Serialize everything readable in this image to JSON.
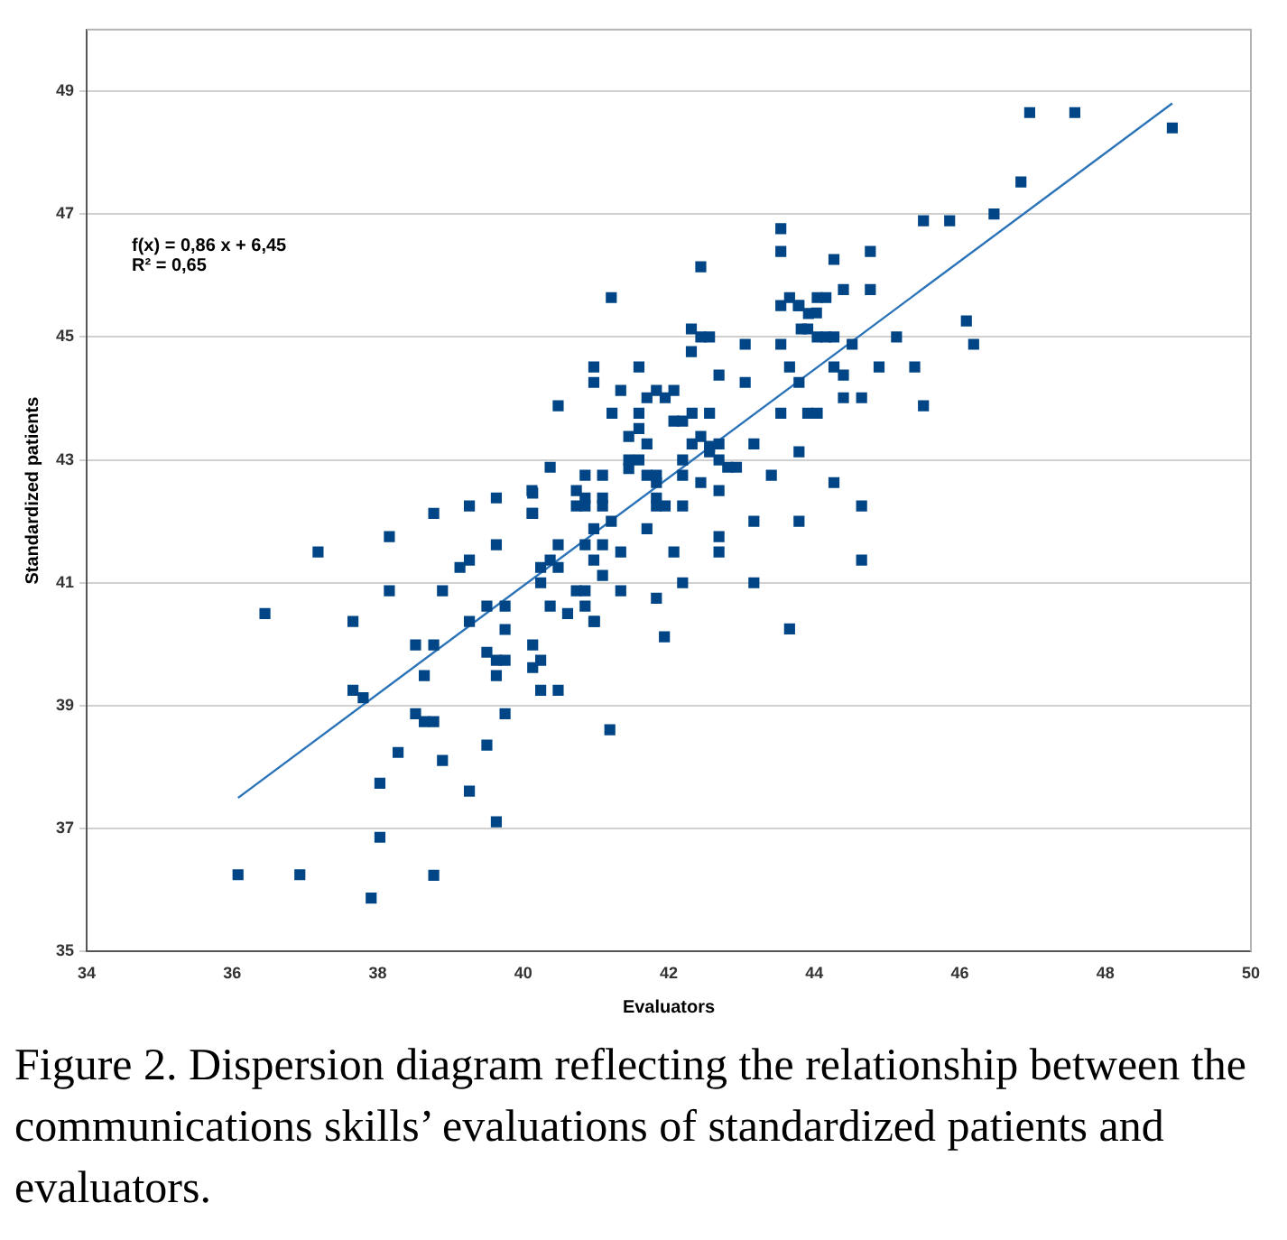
{
  "chart_data": {
    "type": "scatter",
    "xlabel": "Evaluators",
    "ylabel": "Standardized patients",
    "annotations": [
      "f(x) = 0,86 x + 6,45",
      "R² = 0,65",
      "Figure 2. Dispersion diagram reflecting the relationship between the communications skills’ evaluations of standardized patients and evaluators."
    ],
    "xlim": [
      34,
      50
    ],
    "xticks": [
      34,
      36,
      38,
      40,
      42,
      44,
      46,
      48,
      50
    ],
    "ylim": [
      35,
      50
    ],
    "yticks": [
      35,
      37,
      39,
      41,
      43,
      45,
      47,
      49
    ],
    "grid": "y",
    "legend": false,
    "series": [
      {
        "color": "#004586",
        "marker": "square",
        "x": [
          36.08,
          36.93,
          36.45,
          37.18,
          37.91,
          38.03,
          38.03,
          37.66,
          37.66,
          37.8,
          38.16,
          38.16,
          38.28,
          38.77,
          38.89,
          38.77,
          38.52,
          38.64,
          38.52,
          38.64,
          38.77,
          38.89,
          38.77,
          39.26,
          39.13,
          39.26,
          39.63,
          39.63,
          40.13,
          40.13,
          39.5,
          39.75,
          39.26,
          39.75,
          39.5,
          39.63,
          39.75,
          39.63,
          40.13,
          40.24,
          40.13,
          40.24,
          40.48,
          39.75,
          39.5,
          39.26,
          39.63,
          41.19,
          40.24,
          40.37,
          40.61,
          40.98,
          40.73,
          40.85,
          40.85,
          40.24,
          40.48,
          40.37,
          40.48,
          42.44,
          41.21,
          42.31,
          42.44,
          42.56,
          42.31,
          43.05,
          43.54,
          43.66,
          43.79,
          43.54,
          43.92,
          44.04,
          43.82,
          44.04,
          40.97,
          40.97,
          41.59,
          40.48,
          41.34,
          41.7,
          41.83,
          41.95,
          42.07,
          41.22,
          41.59,
          42.07,
          42.19,
          42.32,
          42.56,
          42.69,
          43.05,
          43.54,
          43.91,
          44.04,
          43.79,
          41.45,
          41.59,
          41.7,
          42.32,
          42.44,
          42.56,
          42.69,
          43.17,
          41.45,
          41.59,
          41.45,
          42.19,
          42.56,
          42.69,
          42.81,
          42.93,
          43.41,
          43.79,
          40.37,
          40.85,
          41.09,
          41.7,
          41.83,
          41.83,
          42.19,
          42.44,
          42.69,
          40.12,
          40.12,
          40.73,
          40.85,
          40.73,
          40.85,
          41.09,
          41.09,
          41.83,
          41.83,
          41.95,
          42.19,
          41.21,
          40.97,
          41.7,
          43.17,
          43.79,
          42.69,
          42.69,
          40.85,
          41.09,
          40.97,
          41.09,
          41.34,
          42.07,
          41.34,
          41.83,
          42.19,
          43.17,
          40.97,
          41.94,
          43.66,
          45.5,
          45.86,
          43.54,
          43.54,
          44.27,
          44.77,
          43.78,
          44.03,
          44.16,
          44.4,
          44.77,
          43.91,
          44.16,
          44.27,
          44.52,
          45.13,
          46.09,
          46.19,
          43.66,
          44.27,
          44.4,
          44.89,
          45.38,
          44.4,
          44.65,
          45.5,
          44.27,
          44.65,
          44.65,
          46.96,
          47.58,
          48.92,
          46.84,
          46.47
        ],
        "values": [
          36.25,
          36.25,
          40.5,
          41.5,
          35.87,
          36.86,
          37.74,
          40.37,
          39.25,
          39.13,
          41.75,
          40.87,
          38.24,
          42.13,
          40.87,
          39.99,
          39.99,
          39.49,
          38.87,
          38.74,
          38.74,
          38.11,
          36.24,
          42.25,
          41.25,
          41.37,
          42.38,
          41.62,
          42.46,
          42.13,
          40.62,
          40.62,
          40.37,
          40.24,
          39.87,
          39.74,
          39.74,
          39.49,
          39.99,
          39.74,
          39.62,
          39.25,
          39.25,
          38.87,
          38.36,
          37.61,
          37.11,
          38.61,
          41.0,
          40.62,
          40.5,
          40.37,
          40.87,
          40.87,
          40.62,
          41.25,
          41.62,
          41.37,
          41.25,
          46.14,
          45.64,
          45.13,
          45.0,
          45.0,
          44.76,
          44.88,
          45.51,
          45.64,
          45.51,
          44.88,
          45.38,
          45.64,
          45.13,
          45.0,
          44.51,
          44.26,
          44.51,
          43.88,
          44.13,
          44.01,
          44.13,
          44.01,
          44.13,
          43.76,
          43.76,
          43.63,
          43.63,
          43.76,
          43.76,
          44.38,
          44.26,
          43.76,
          43.76,
          43.76,
          44.26,
          43.38,
          43.51,
          43.26,
          43.26,
          43.38,
          43.22,
          43.26,
          43.26,
          43.0,
          43.0,
          42.86,
          43.0,
          43.13,
          43.0,
          42.88,
          42.88,
          42.75,
          43.13,
          42.88,
          42.75,
          42.75,
          42.75,
          42.75,
          42.63,
          42.75,
          42.63,
          42.5,
          42.5,
          42.13,
          42.5,
          42.38,
          42.25,
          42.25,
          42.38,
          42.25,
          42.38,
          42.25,
          42.25,
          42.25,
          42.0,
          41.88,
          41.88,
          42.0,
          42.0,
          41.75,
          41.5,
          41.62,
          41.62,
          41.37,
          41.12,
          41.5,
          41.5,
          40.87,
          40.75,
          41.0,
          41.0,
          40.37,
          40.12,
          40.25,
          46.89,
          46.89,
          46.76,
          46.39,
          46.26,
          46.39,
          45.51,
          45.39,
          45.64,
          45.77,
          45.77,
          45.13,
          45.0,
          45.0,
          44.88,
          45.0,
          45.26,
          44.88,
          44.51,
          44.51,
          44.38,
          44.51,
          44.51,
          44.01,
          44.01,
          43.88,
          42.63,
          42.25,
          41.37,
          48.65,
          48.65,
          48.4,
          47.52,
          47.0
        ]
      },
      {
        "type": "line",
        "color": "#2a73b8",
        "marker": "none",
        "line_style": "solid",
        "x": [
          36.08,
          48.92
        ],
        "values": [
          37.5,
          48.8
        ]
      }
    ]
  }
}
